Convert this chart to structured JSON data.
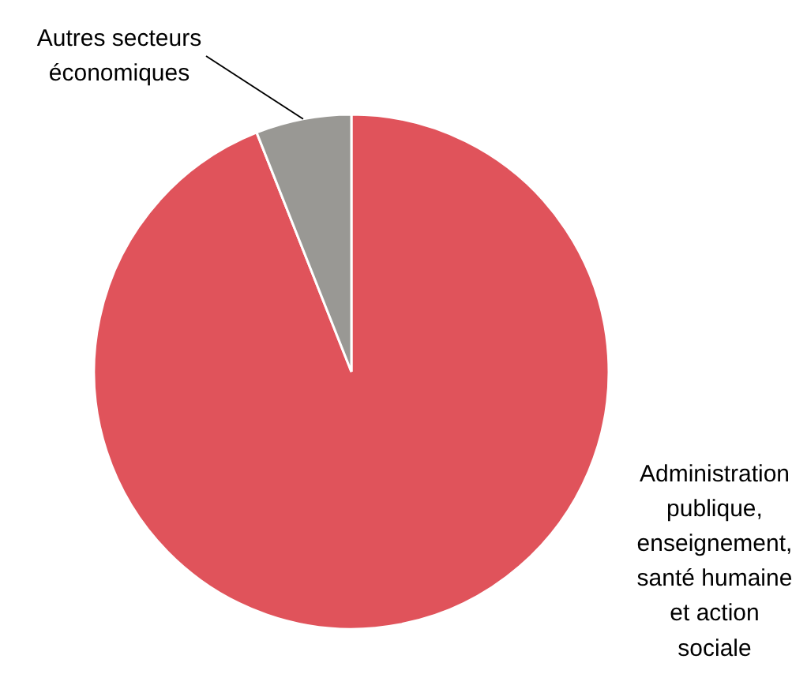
{
  "chart_data": {
    "type": "pie",
    "categories": [
      "Administration publique, enseignement, santé humaine et action sociale",
      "Autres secteurs économiques"
    ],
    "values": [
      94,
      6
    ],
    "colors": [
      "#e0535b",
      "#999894"
    ]
  }
}
